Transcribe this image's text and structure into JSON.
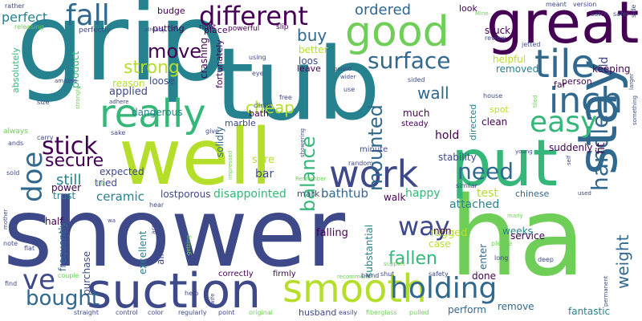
{
  "palette": {
    "dark_purple": "#440154",
    "indigo": "#3e4989",
    "blue": "#31688e",
    "teal": "#26828e",
    "green": "#35b779",
    "light_green": "#6ece58",
    "yellow_green": "#b5de2b",
    "yellow": "#fde725"
  },
  "words": [
    {
      "text": "shower",
      "color": "#3e4989"
    },
    {
      "text": "ha",
      "color": "#6ece58"
    },
    {
      "text": "grip",
      "color": "#26828e"
    },
    {
      "text": "tub",
      "color": "#26828e"
    },
    {
      "text": "well",
      "color": "#b5de2b"
    },
    {
      "text": "great",
      "color": "#440154"
    },
    {
      "text": "put",
      "color": "#35b779"
    },
    {
      "text": "stay",
      "color": "#31688e"
    },
    {
      "text": "suction",
      "color": "#3e4989"
    },
    {
      "text": "smooth",
      "color": "#b5de2b"
    },
    {
      "text": "work",
      "color": "#3e4989"
    },
    {
      "text": "good",
      "color": "#6ece58"
    },
    {
      "text": "tile",
      "color": "#31688e"
    },
    {
      "text": "inch",
      "color": "#31688e"
    },
    {
      "text": "really",
      "color": "#35b779"
    },
    {
      "text": "easy",
      "color": "#35b779"
    },
    {
      "text": "handle",
      "color": "#31688e"
    },
    {
      "text": "holding",
      "color": "#31688e"
    },
    {
      "text": "fall",
      "color": "#31688e"
    },
    {
      "text": "different",
      "color": "#440154"
    },
    {
      "text": "ve",
      "color": "#3e4989"
    },
    {
      "text": "way",
      "color": "#3e4989"
    },
    {
      "text": "stick",
      "color": "#440154"
    },
    {
      "text": "doe",
      "color": "#31688e"
    },
    {
      "text": "bought",
      "color": "#31688e"
    },
    {
      "text": "surface",
      "color": "#31688e"
    },
    {
      "text": "need",
      "color": "#31688e"
    },
    {
      "text": "balance",
      "color": "#35b779"
    },
    {
      "text": "mounted",
      "color": "#31688e"
    },
    {
      "text": "move",
      "color": "#440154"
    },
    {
      "text": "strong",
      "color": "#b5de2b"
    },
    {
      "text": "cheap",
      "color": "#b5de2b"
    },
    {
      "text": "secure",
      "color": "#440154"
    },
    {
      "text": "fallen",
      "color": "#35b779"
    },
    {
      "text": "weight",
      "color": "#31688e"
    },
    {
      "text": "ordered",
      "color": "#31688e"
    },
    {
      "text": "buy",
      "color": "#31688e"
    },
    {
      "text": "wall",
      "color": "#31688e"
    },
    {
      "text": "perfect",
      "color": "#26828e"
    },
    {
      "text": "still",
      "color": "#26828e"
    },
    {
      "text": "disappointed",
      "color": "#35b779"
    },
    {
      "text": "bathtub",
      "color": "#31688e"
    },
    {
      "text": "ceramic",
      "color": "#26828e"
    },
    {
      "text": "attached",
      "color": "#26828e"
    },
    {
      "text": "happy",
      "color": "#35b779"
    },
    {
      "text": "hold",
      "color": "#440154"
    },
    {
      "text": "old",
      "color": "#3e4989"
    },
    {
      "text": "fit",
      "color": "#440154"
    },
    {
      "text": "test",
      "color": "#b5de2b"
    },
    {
      "text": "rugged",
      "color": "#b5de2b"
    },
    {
      "text": "weeks",
      "color": "#26828e"
    },
    {
      "text": "product",
      "color": "#35b779"
    },
    {
      "text": "power",
      "color": "#440154"
    },
    {
      "text": "trust",
      "color": "#26828e"
    },
    {
      "text": "applied",
      "color": "#3e4989"
    },
    {
      "text": "reason",
      "color": "#b5de2b"
    },
    {
      "text": "loose",
      "color": "#3e4989"
    },
    {
      "text": "crashing",
      "color": "#440154"
    },
    {
      "text": "fortunately",
      "color": "#440154"
    },
    {
      "text": "dangerous",
      "color": "#26828e"
    },
    {
      "text": "expected",
      "color": "#3e4989"
    },
    {
      "text": "tried",
      "color": "#3e4989"
    },
    {
      "text": "bar",
      "color": "#3e4989"
    },
    {
      "text": "sure",
      "color": "#b5de2b"
    },
    {
      "text": "marble",
      "color": "#3e4989"
    },
    {
      "text": "solidly",
      "color": "#31688e"
    },
    {
      "text": "bath",
      "color": "#440154"
    },
    {
      "text": "lostporous",
      "color": "#3e4989"
    },
    {
      "text": "mark",
      "color": "#3e4989"
    },
    {
      "text": "walk",
      "color": "#440154"
    },
    {
      "text": "half",
      "color": "#440154"
    },
    {
      "text": "frequently",
      "color": "#31688e"
    },
    {
      "text": "excellent",
      "color": "#26828e"
    },
    {
      "text": "purchase",
      "color": "#3e4989"
    },
    {
      "text": "almost",
      "color": "#3e4989"
    },
    {
      "text": "falling",
      "color": "#440154"
    },
    {
      "text": "substantial",
      "color": "#26828e"
    },
    {
      "text": "case",
      "color": "#b5de2b"
    },
    {
      "text": "non",
      "color": "#440154"
    },
    {
      "text": "enter",
      "color": "#31688e"
    },
    {
      "text": "service",
      "color": "#440154"
    },
    {
      "text": "done",
      "color": "#440154"
    },
    {
      "text": "perform",
      "color": "#31688e"
    },
    {
      "text": "remove",
      "color": "#31688e"
    },
    {
      "text": "fantastic",
      "color": "#26828e"
    },
    {
      "text": "husband",
      "color": "#3e4989"
    },
    {
      "text": "correctly",
      "color": "#440154"
    },
    {
      "text": "firmly",
      "color": "#440154"
    },
    {
      "text": "chinese",
      "color": "#31688e"
    },
    {
      "text": "stability",
      "color": "#3e4989"
    },
    {
      "text": "directed",
      "color": "#26828e"
    },
    {
      "text": "clean",
      "color": "#440154"
    },
    {
      "text": "spot",
      "color": "#b5de2b"
    },
    {
      "text": "much",
      "color": "#440154"
    },
    {
      "text": "steady",
      "color": "#440154"
    },
    {
      "text": "suddenly",
      "color": "#440154"
    },
    {
      "text": "person",
      "color": "#440154"
    },
    {
      "text": "helpful",
      "color": "#b5de2b"
    },
    {
      "text": "removed",
      "color": "#26828e"
    },
    {
      "text": "keeping",
      "color": "#440154"
    },
    {
      "text": "stuck",
      "color": "#440154"
    },
    {
      "text": "look",
      "color": "#440154"
    },
    {
      "text": "better",
      "color": "#b5de2b"
    },
    {
      "text": "loos",
      "color": "#3e4989"
    },
    {
      "text": "leave",
      "color": "#440154"
    },
    {
      "text": "place",
      "color": "#440154"
    },
    {
      "text": "putting",
      "color": "#440154"
    },
    {
      "text": "budge",
      "color": "#440154"
    },
    {
      "text": "right",
      "color": "#440154"
    },
    {
      "text": "powerful",
      "color": "#440154"
    },
    {
      "text": "slip",
      "color": "#440154"
    },
    {
      "text": "far",
      "color": "#440154"
    },
    {
      "text": "absolutely",
      "color": "#35b779"
    },
    {
      "text": "perfectly",
      "color": "#3e4989"
    },
    {
      "text": "already",
      "color": "#3e4989"
    },
    {
      "text": "releasing",
      "color": "#6ece58"
    },
    {
      "text": "rather",
      "color": "#3e4989"
    },
    {
      "text": "amazed",
      "color": "#3e4989"
    },
    {
      "text": "adhere",
      "color": "#3e4989"
    },
    {
      "text": "size",
      "color": "#3e4989"
    },
    {
      "text": "carry",
      "color": "#3e4989"
    },
    {
      "text": "sold",
      "color": "#3e4989"
    },
    {
      "text": "ands",
      "color": "#3e4989"
    },
    {
      "text": "always",
      "color": "#6ece58"
    },
    {
      "text": "strongly",
      "color": "#6ece58"
    },
    {
      "text": "sake",
      "color": "#3e4989"
    },
    {
      "text": "give",
      "color": "#3e4989"
    },
    {
      "text": "free",
      "color": "#3e4989"
    },
    {
      "text": "climb",
      "color": "#3e4989"
    },
    {
      "text": "using",
      "color": "#3e4989"
    },
    {
      "text": "eye",
      "color": "#3e4989"
    },
    {
      "text": "impressed",
      "color": "#6ece58"
    },
    {
      "text": "showering",
      "color": "#3e4989"
    },
    {
      "text": "random",
      "color": "#3e4989"
    },
    {
      "text": "minute",
      "color": "#3e4989"
    },
    {
      "text": "Remember",
      "color": "#6ece58"
    },
    {
      "text": "pound",
      "color": "#3e4989"
    },
    {
      "text": "wider",
      "color": "#3e4989"
    },
    {
      "text": "sided",
      "color": "#3e4989"
    },
    {
      "text": "use",
      "color": "#3e4989"
    },
    {
      "text": "house",
      "color": "#3e4989"
    },
    {
      "text": "recommend",
      "color": "#6ece58"
    },
    {
      "text": "blend",
      "color": "#3e4989"
    },
    {
      "text": "shut",
      "color": "#3e4989"
    },
    {
      "text": "safety",
      "color": "#3e4989"
    },
    {
      "text": "support",
      "color": "#6ece58"
    },
    {
      "text": "similar",
      "color": "#3e4989"
    },
    {
      "text": "young",
      "color": "#3e4989"
    },
    {
      "text": "self",
      "color": "#3e4989"
    },
    {
      "text": "used",
      "color": "#3e4989"
    },
    {
      "text": "many",
      "color": "#6ece58"
    },
    {
      "text": "please",
      "color": "#6ece58"
    },
    {
      "text": "long",
      "color": "#3e4989"
    },
    {
      "text": "deep",
      "color": "#3e4989"
    },
    {
      "text": "permanent",
      "color": "#3e4989"
    },
    {
      "text": "mother",
      "color": "#3e4989"
    },
    {
      "text": "note",
      "color": "#3e4989"
    },
    {
      "text": "flat",
      "color": "#3e4989"
    },
    {
      "text": "find",
      "color": "#3e4989"
    },
    {
      "text": "couple",
      "color": "#6ece58"
    },
    {
      "text": "straight",
      "color": "#3e4989"
    },
    {
      "text": "control",
      "color": "#3e4989"
    },
    {
      "text": "color",
      "color": "#3e4989"
    },
    {
      "text": "regularly",
      "color": "#3e4989"
    },
    {
      "text": "point",
      "color": "#3e4989"
    },
    {
      "text": "original",
      "color": "#6ece58"
    },
    {
      "text": "easily",
      "color": "#3e4989"
    },
    {
      "text": "fiberglass",
      "color": "#6ece58"
    },
    {
      "text": "pulled",
      "color": "#6ece58"
    },
    {
      "text": "help",
      "color": "#3e4989"
    },
    {
      "text": "wife",
      "color": "#3e4989"
    },
    {
      "text": "getting",
      "color": "#6ece58"
    },
    {
      "text": "wa",
      "color": "#3e4989"
    },
    {
      "text": "area",
      "color": "#3e4989"
    },
    {
      "text": "meant",
      "color": "#3e4989"
    },
    {
      "text": "version",
      "color": "#3e4989"
    },
    {
      "text": "catch",
      "color": "#3e4989"
    },
    {
      "text": "safer",
      "color": "#3e4989"
    },
    {
      "text": "side",
      "color": "#3e4989"
    },
    {
      "text": "Mine",
      "color": "#6ece58"
    },
    {
      "text": "review",
      "color": "#3e4989"
    },
    {
      "text": "jetted",
      "color": "#3e4989"
    },
    {
      "text": "larger",
      "color": "#3e4989"
    },
    {
      "text": "something",
      "color": "#3e4989"
    },
    {
      "text": "tiled",
      "color": "#6ece58"
    },
    {
      "text": "first",
      "color": "#6ece58"
    },
    {
      "text": "hear",
      "color": "#3e4989"
    }
  ]
}
